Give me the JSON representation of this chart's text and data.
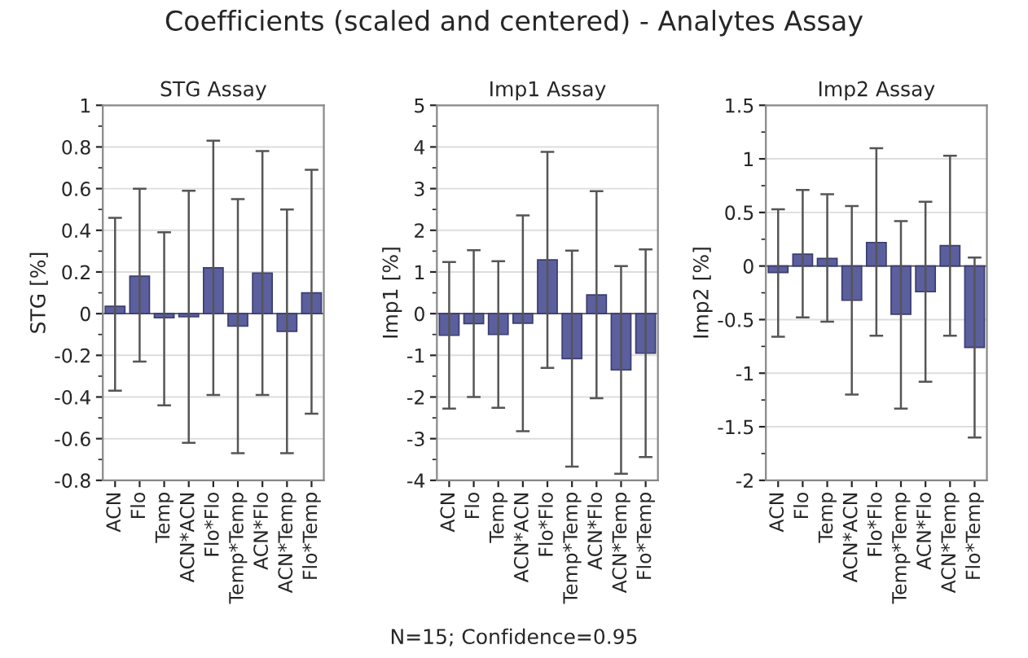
{
  "chart_data": [
    {
      "type": "bar",
      "title": "Coefficients (scaled and centered) - Analytes Assay",
      "subtitle": "STG Assay",
      "ylabel": "STG [%]",
      "annotations": [
        "N=15; Confidence=0.95"
      ],
      "categories": [
        "ACN",
        "Flo",
        "Temp",
        "ACN*ACN",
        "Flo*Flo",
        "Temp*Temp",
        "ACN*Flo",
        "ACN*Temp",
        "Flo*Temp"
      ],
      "series": [
        {
          "color": "#5b5f9e",
          "values": [
            0.035,
            0.18,
            -0.02,
            -0.015,
            0.22,
            -0.06,
            0.195,
            -0.085,
            0.1
          ],
          "errors": [
            [
              -0.37,
              0.46
            ],
            [
              -0.23,
              0.6
            ],
            [
              -0.44,
              0.39
            ],
            [
              -0.62,
              0.59
            ],
            [
              -0.39,
              0.83
            ],
            [
              -0.67,
              0.55
            ],
            [
              -0.39,
              0.78
            ],
            [
              -0.67,
              0.5
            ],
            [
              -0.48,
              0.69
            ]
          ]
        }
      ],
      "ylim": [
        -0.8,
        1
      ],
      "yticks": [
        -0.8,
        -0.6,
        -0.4,
        -0.2,
        0,
        0.2,
        0.4,
        0.6,
        0.8,
        1
      ],
      "grid": "y"
    },
    {
      "type": "bar",
      "subtitle": "Imp1 Assay",
      "ylabel": "Imp1 [%]",
      "categories": [
        "ACN",
        "Flo",
        "Temp",
        "ACN*ACN",
        "Flo*Flo",
        "Temp*Temp",
        "ACN*Flo",
        "ACN*Temp",
        "Flo*Temp"
      ],
      "series": [
        {
          "color": "#5b5f9e",
          "values": [
            -0.52,
            -0.24,
            -0.5,
            -0.23,
            1.29,
            -1.08,
            0.45,
            -1.35,
            -0.95
          ],
          "errors": [
            [
              -2.28,
              1.24
            ],
            [
              -2.0,
              1.52
            ],
            [
              -2.26,
              1.26
            ],
            [
              -2.82,
              2.36
            ],
            [
              -1.3,
              3.88
            ],
            [
              -3.67,
              1.51
            ],
            [
              -2.03,
              2.94
            ],
            [
              -3.84,
              1.14
            ],
            [
              -3.44,
              1.54
            ]
          ]
        }
      ],
      "ylim": [
        -4,
        5
      ],
      "yticks": [
        -4,
        -3,
        -2,
        -1,
        0,
        1,
        2,
        3,
        4,
        5
      ],
      "grid": "y"
    },
    {
      "type": "bar",
      "subtitle": "Imp2 Assay",
      "ylabel": "Imp2 [%]",
      "categories": [
        "ACN",
        "Flo",
        "Temp",
        "ACN*ACN",
        "Flo*Flo",
        "Temp*Temp",
        "ACN*Flo",
        "ACN*Temp",
        "Flo*Temp"
      ],
      "series": [
        {
          "color": "#5b5f9e",
          "values": [
            -0.06,
            0.11,
            0.07,
            -0.32,
            0.22,
            -0.45,
            -0.24,
            0.19,
            -0.76
          ],
          "errors": [
            [
              -0.66,
              0.53
            ],
            [
              -0.48,
              0.71
            ],
            [
              -0.52,
              0.67
            ],
            [
              -1.2,
              0.56
            ],
            [
              -0.65,
              1.1
            ],
            [
              -1.33,
              0.42
            ],
            [
              -1.08,
              0.6
            ],
            [
              -0.65,
              1.03
            ],
            [
              -1.6,
              0.08
            ]
          ]
        }
      ],
      "ylim": [
        -2,
        1.5
      ],
      "yticks": [
        -2,
        -1.5,
        -1,
        -0.5,
        0,
        0.5,
        1,
        1.5
      ],
      "grid": "y"
    }
  ]
}
